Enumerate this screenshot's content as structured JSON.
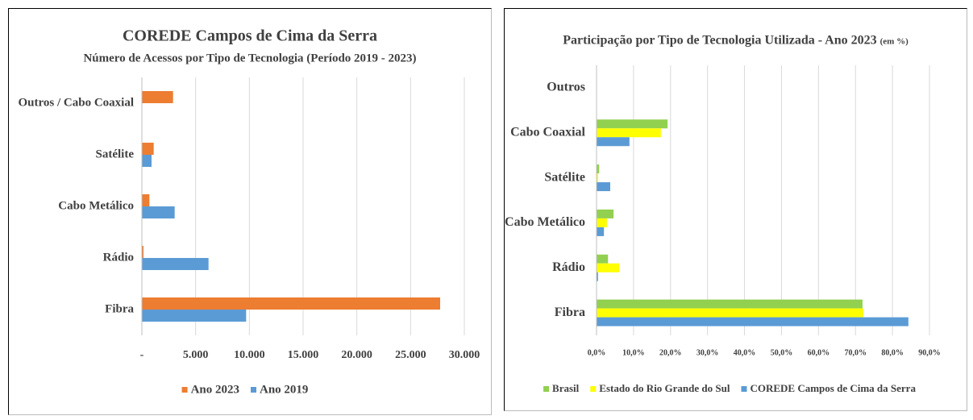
{
  "chart_data": [
    {
      "type": "hbar",
      "title": "COREDE Campos de Cima da Serra",
      "subtitle": "Número de Acessos por Tipo de Tecnologia (Período 2019 - 2023)",
      "categories": [
        "Outros / Cabo Coaxial",
        "Satélite",
        "Cabo Metálico",
        "Rádio",
        "Fibra"
      ],
      "series": [
        {
          "name": "Ano 2023",
          "color": "#ed7d31",
          "values": [
            2900,
            1100,
            700,
            150,
            27750
          ]
        },
        {
          "name": "Ano 2019",
          "color": "#5b9bd5",
          "values": [
            0,
            900,
            3050,
            6200,
            9700
          ]
        }
      ],
      "xlim": [
        0,
        30000
      ],
      "xticks": [
        {
          "value": 0,
          "label": "-"
        },
        {
          "value": 5000,
          "label": "5.000"
        },
        {
          "value": 10000,
          "label": "10.000"
        },
        {
          "value": 15000,
          "label": "15.000"
        },
        {
          "value": 20000,
          "label": "20.000"
        },
        {
          "value": 25000,
          "label": "25.000"
        },
        {
          "value": 30000,
          "label": "30.000"
        }
      ],
      "grid": true,
      "legend": "bottom"
    },
    {
      "type": "hbar",
      "title": "Participação por Tipo de Tecnologia Utilizada - Ano 2023",
      "subtitle": "(em %)",
      "categories": [
        "Outros",
        "Cabo Coaxial",
        "Satélite",
        "Cabo Metálico",
        "Rádio",
        "Fibra"
      ],
      "series": [
        {
          "name": "Brasil",
          "color": "#92d050",
          "values": [
            0,
            19.2,
            0.7,
            4.6,
            3.1,
            71.9
          ]
        },
        {
          "name": "Estado do Rio Grande do Sul",
          "color": "#ffff00",
          "values": [
            0,
            17.4,
            0.4,
            2.8,
            6.1,
            72.1
          ]
        },
        {
          "name": "COREDE Campos de Cima da Serra",
          "color": "#5b9bd5",
          "values": [
            0,
            8.9,
            3.7,
            2.0,
            0.4,
            84.3
          ]
        }
      ],
      "xlim": [
        0,
        90
      ],
      "xticks": [
        {
          "value": 0,
          "label": "0,0%"
        },
        {
          "value": 10,
          "label": "10,0%"
        },
        {
          "value": 20,
          "label": "20,0%"
        },
        {
          "value": 30,
          "label": "30,0%"
        },
        {
          "value": 40,
          "label": "40,0%"
        },
        {
          "value": 50,
          "label": "50,0%"
        },
        {
          "value": 60,
          "label": "60,0%"
        },
        {
          "value": 70,
          "label": "70,0%"
        },
        {
          "value": 80,
          "label": "80,0%"
        },
        {
          "value": 90,
          "label": "90,0%"
        }
      ],
      "grid": true,
      "legend": "bottom"
    }
  ]
}
